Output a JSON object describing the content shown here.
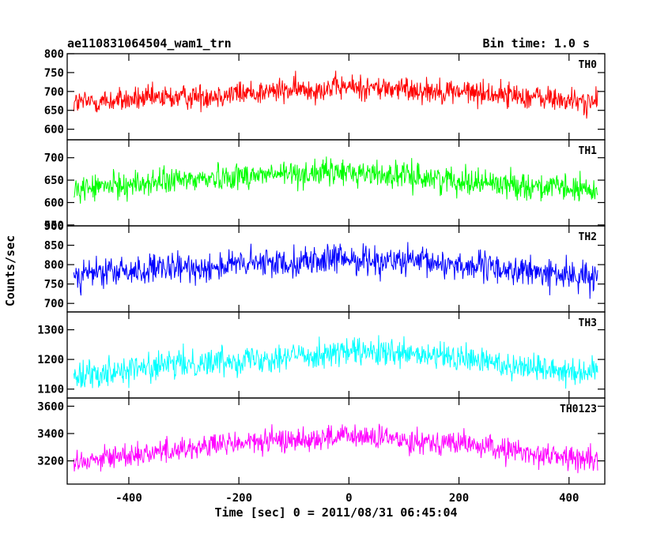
{
  "chart_data": {
    "type": "line",
    "title": "ae110831064504_wam1_trn",
    "subtitle": "Bin time: 1.0 s",
    "xlabel": "Time [sec] 0 = 2011/08/31 06:45:04",
    "ylabel": "Counts/sec",
    "xlim": [
      -512,
      465
    ],
    "xticks": [
      -400,
      -200,
      0,
      200,
      400
    ],
    "grid": false,
    "panels": [
      {
        "name": "TH0",
        "color": "#ff0000",
        "ylim": [
          572,
          800
        ],
        "yticks": [
          600,
          650,
          700,
          750,
          800
        ],
        "x_range": [
          -500,
          452
        ],
        "profile": {
          "x": [
            -500,
            -300,
            -200,
            0,
            200,
            300,
            452
          ],
          "y": [
            670,
            685,
            695,
            712,
            700,
            690,
            668
          ]
        },
        "noise_amplitude": 28
      },
      {
        "name": "TH1",
        "color": "#00ff00",
        "ylim": [
          548,
          740
        ],
        "yticks": [
          550,
          600,
          650,
          700
        ],
        "x_range": [
          -500,
          452
        ],
        "profile": {
          "x": [
            -500,
            -300,
            -200,
            0,
            200,
            300,
            452
          ],
          "y": [
            630,
            650,
            660,
            668,
            650,
            640,
            625
          ]
        },
        "noise_amplitude": 25
      },
      {
        "name": "TH2",
        "color": "#0000ff",
        "ylim": [
          678,
          900
        ],
        "yticks": [
          700,
          750,
          800,
          850,
          900
        ],
        "x_range": [
          -500,
          452
        ],
        "profile": {
          "x": [
            -500,
            -300,
            -200,
            0,
            200,
            300,
            452
          ],
          "y": [
            775,
            790,
            800,
            815,
            800,
            785,
            765
          ]
        },
        "noise_amplitude": 32
      },
      {
        "name": "TH3",
        "color": "#00ffff",
        "ylim": [
          1070,
          1360
        ],
        "yticks": [
          1100,
          1200,
          1300
        ],
        "x_range": [
          -500,
          452
        ],
        "profile": {
          "x": [
            -500,
            -300,
            -200,
            0,
            200,
            300,
            452
          ],
          "y": [
            1150,
            1185,
            1200,
            1225,
            1205,
            1180,
            1155
          ]
        },
        "noise_amplitude": 40
      },
      {
        "name": "TH0123",
        "color": "#ff00ff",
        "ylim": [
          3030,
          3660
        ],
        "yticks": [
          3200,
          3400,
          3600
        ],
        "x_range": [
          -500,
          452
        ],
        "profile": {
          "x": [
            -500,
            -300,
            -200,
            0,
            200,
            300,
            452
          ],
          "y": [
            3200,
            3290,
            3330,
            3380,
            3330,
            3270,
            3200
          ]
        },
        "noise_amplitude": 75
      }
    ]
  }
}
